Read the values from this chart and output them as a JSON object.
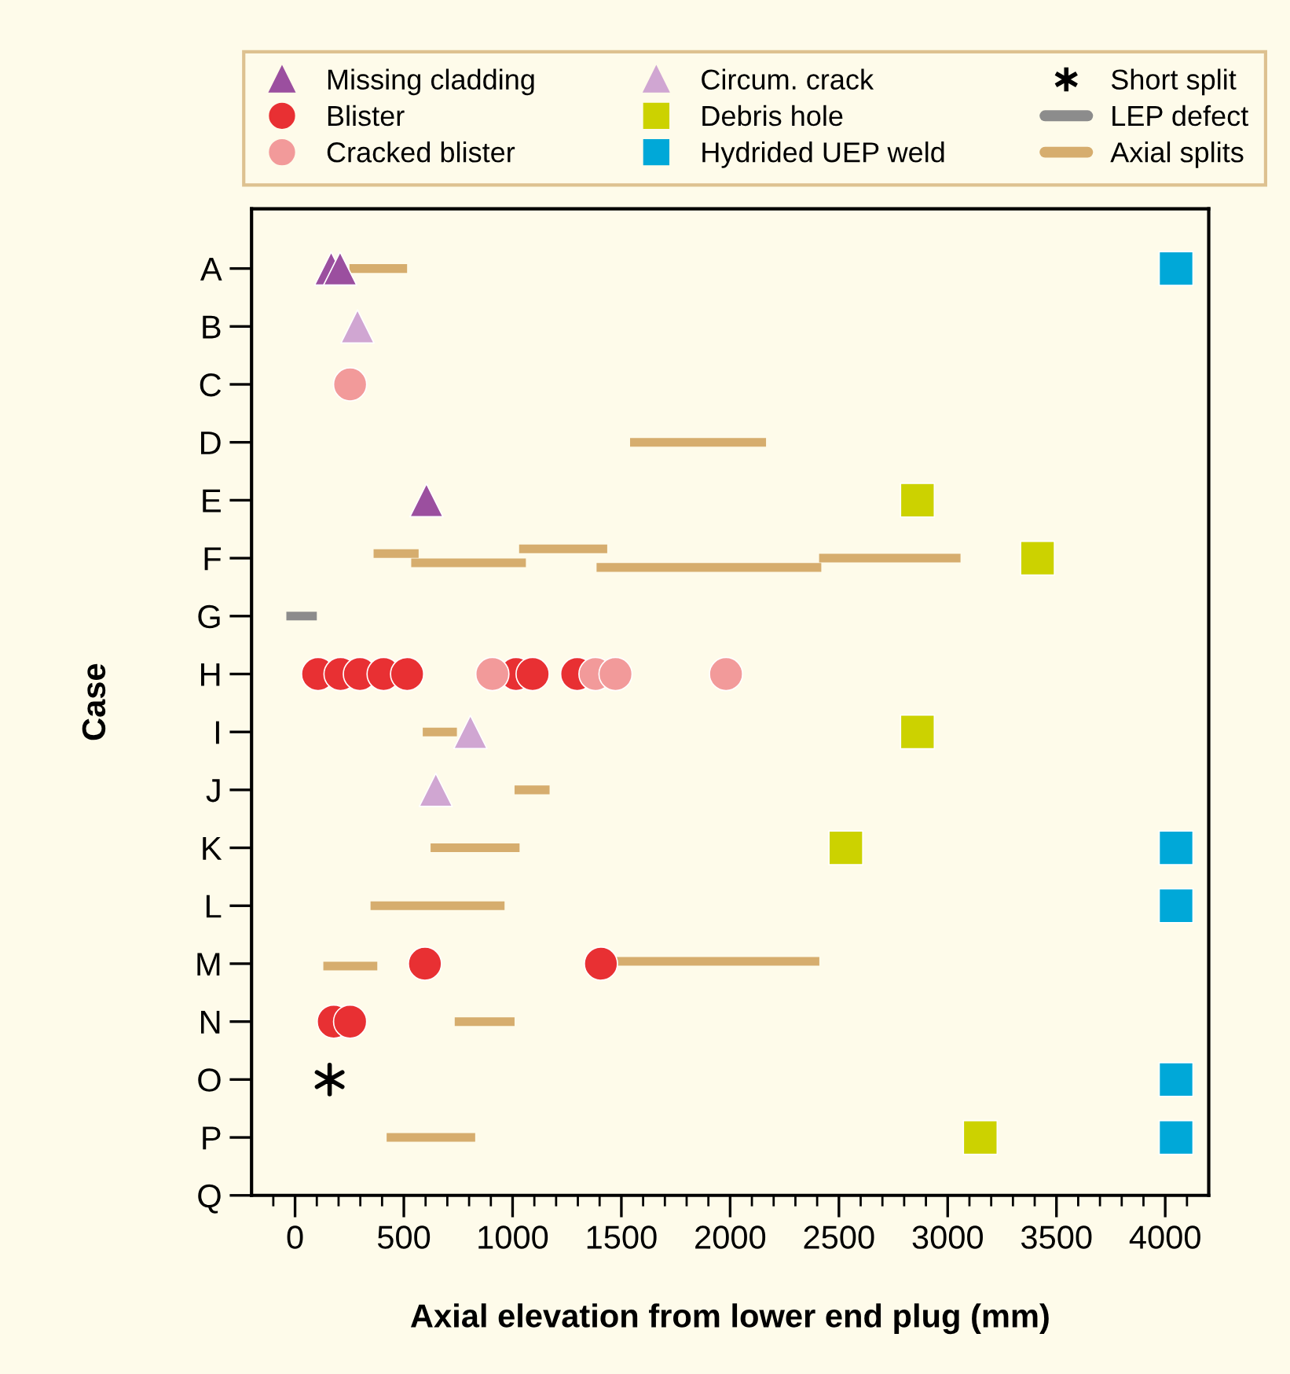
{
  "chart_data": {
    "type": "scatter",
    "xlabel": "Axial elevation from lower end plug (mm)",
    "ylabel": "Case",
    "categories": [
      "A",
      "B",
      "C",
      "D",
      "E",
      "F",
      "G",
      "H",
      "I",
      "J",
      "K",
      "L",
      "M",
      "N",
      "O",
      "P",
      "Q"
    ],
    "orientation": "horizontal",
    "xlim": [
      -200,
      4200
    ],
    "xticks": [
      {
        "value": -100,
        "label": null
      },
      0,
      {
        "value": 100,
        "label": null
      },
      {
        "value": 200,
        "label": null
      },
      {
        "value": 300,
        "label": null
      },
      {
        "value": 400,
        "label": null
      },
      500,
      {
        "value": 600,
        "label": null
      },
      {
        "value": 700,
        "label": null
      },
      {
        "value": 800,
        "label": null
      },
      {
        "value": 900,
        "label": null
      },
      1000,
      {
        "value": 1100,
        "label": null
      },
      {
        "value": 1200,
        "label": null
      },
      {
        "value": 1300,
        "label": null
      },
      {
        "value": 1400,
        "label": null
      },
      1500,
      {
        "value": 1600,
        "label": null
      },
      {
        "value": 1700,
        "label": null
      },
      {
        "value": 1800,
        "label": null
      },
      {
        "value": 1900,
        "label": null
      },
      2000,
      {
        "value": 2100,
        "label": null
      },
      {
        "value": 2200,
        "label": null
      },
      {
        "value": 2300,
        "label": null
      },
      {
        "value": 2400,
        "label": null
      },
      2500,
      {
        "value": 2600,
        "label": null
      },
      {
        "value": 2700,
        "label": null
      },
      {
        "value": 2800,
        "label": null
      },
      {
        "value": 2900,
        "label": null
      },
      3000,
      {
        "value": 3100,
        "label": null
      },
      {
        "value": 3200,
        "label": null
      },
      {
        "value": 3300,
        "label": null
      },
      {
        "value": 3400,
        "label": null
      },
      3500,
      {
        "value": 3600,
        "label": null
      },
      {
        "value": 3700,
        "label": null
      },
      {
        "value": 3800,
        "label": null
      },
      {
        "value": 3900,
        "label": null
      },
      4000,
      {
        "value": 4100,
        "label": null
      }
    ],
    "grid": false,
    "legend": "top",
    "series": [
      {
        "name": "Missing cladding",
        "marker": "triangle",
        "color": "#9b4f9f",
        "values": [
          166,
          null,
          null,
          null,
          604,
          null,
          null,
          null,
          null,
          null,
          null,
          null,
          null,
          null,
          null,
          null,
          null
        ]
      },
      {
        "marker": "triangle",
        "color": "#9b4f9f",
        "values": [
          207,
          null,
          null,
          null,
          null,
          null,
          null,
          null,
          null,
          null,
          null,
          null,
          null,
          null,
          null,
          null,
          null
        ]
      },
      {
        "name": "Blister",
        "marker": "circle",
        "color": "#e83033",
        "values": [
          null,
          null,
          null,
          null,
          null,
          null,
          null,
          106,
          null,
          null,
          null,
          null,
          597,
          178,
          null,
          null,
          null
        ]
      },
      {
        "marker": "circle",
        "color": "#e83033",
        "values": [
          null,
          null,
          null,
          null,
          null,
          null,
          null,
          209,
          null,
          null,
          null,
          null,
          1406,
          253,
          null,
          null,
          null
        ]
      },
      {
        "marker": "circle",
        "color": "#e83033",
        "values": [
          null,
          null,
          null,
          null,
          null,
          null,
          null,
          298,
          null,
          null,
          null,
          null,
          null,
          null,
          null,
          null,
          null
        ]
      },
      {
        "marker": "circle",
        "color": "#e83033",
        "values": [
          null,
          null,
          null,
          null,
          null,
          null,
          null,
          407,
          null,
          null,
          null,
          null,
          null,
          null,
          null,
          null,
          null
        ]
      },
      {
        "marker": "circle",
        "color": "#e83033",
        "values": [
          null,
          null,
          null,
          null,
          null,
          null,
          null,
          515,
          null,
          null,
          null,
          null,
          null,
          null,
          null,
          null,
          null
        ]
      },
      {
        "marker": "circle",
        "color": "#e83033",
        "values": [
          null,
          null,
          null,
          null,
          null,
          null,
          null,
          1016,
          null,
          null,
          null,
          null,
          null,
          null,
          null,
          null,
          null
        ]
      },
      {
        "marker": "circle",
        "color": "#e83033",
        "values": [
          null,
          null,
          null,
          null,
          null,
          null,
          null,
          1092,
          null,
          null,
          null,
          null,
          null,
          null,
          null,
          null,
          null
        ]
      },
      {
        "marker": "circle",
        "color": "#e83033",
        "values": [
          null,
          null,
          null,
          null,
          null,
          null,
          null,
          1297,
          null,
          null,
          null,
          null,
          null,
          null,
          null,
          null,
          null
        ]
      },
      {
        "name": "Cracked blister",
        "marker": "circle",
        "color": "#f29a9a",
        "values": [
          null,
          null,
          253,
          null,
          null,
          null,
          null,
          907,
          null,
          null,
          null,
          null,
          null,
          null,
          null,
          null,
          null
        ]
      },
      {
        "marker": "circle",
        "color": "#f29a9a",
        "values": [
          null,
          null,
          null,
          null,
          null,
          null,
          null,
          1381,
          null,
          null,
          null,
          null,
          null,
          null,
          null,
          null,
          null
        ]
      },
      {
        "marker": "circle",
        "color": "#f29a9a",
        "values": [
          null,
          null,
          null,
          null,
          null,
          null,
          null,
          1473,
          null,
          null,
          null,
          null,
          null,
          null,
          null,
          null,
          null
        ]
      },
      {
        "marker": "circle",
        "color": "#f29a9a",
        "values": [
          null,
          null,
          null,
          null,
          null,
          null,
          null,
          1981,
          null,
          null,
          null,
          null,
          null,
          null,
          null,
          null,
          null
        ]
      },
      {
        "name": "Circum. crack",
        "marker": "triangle",
        "color": "#d0a6d2",
        "values": [
          null,
          287,
          null,
          null,
          null,
          null,
          null,
          null,
          806,
          647,
          null,
          null,
          null,
          null,
          null,
          null,
          null
        ]
      },
      {
        "name": "Debris hole",
        "marker": "square",
        "color": "#ccd200",
        "values": [
          null,
          null,
          null,
          null,
          2861,
          3413,
          null,
          null,
          2861,
          null,
          2532,
          null,
          null,
          null,
          null,
          3150,
          null
        ]
      },
      {
        "name": "Hydrided UEP weld",
        "marker": "square",
        "color": "#00a8d8",
        "values": [
          4050,
          null,
          null,
          null,
          null,
          null,
          null,
          null,
          null,
          null,
          4050,
          4050,
          null,
          null,
          4050,
          4050,
          null
        ]
      },
      {
        "name": "Short split",
        "marker": "cross",
        "color": "#000000",
        "values": [
          null,
          null,
          null,
          null,
          null,
          null,
          null,
          null,
          null,
          null,
          null,
          null,
          null,
          null,
          159,
          null,
          null
        ]
      },
      {
        "name": "LEP defect",
        "type": "bar",
        "color": "#8c8c8c",
        "base": [
          null,
          null,
          null,
          null,
          null,
          null,
          -40,
          null,
          null,
          null,
          null,
          null,
          null,
          null,
          null,
          null,
          null
        ],
        "values": [
          null,
          null,
          null,
          null,
          null,
          null,
          140,
          null,
          null,
          null,
          null,
          null,
          null,
          null,
          null,
          null,
          null
        ]
      },
      {
        "type": "bar",
        "color": "#d6ad6e",
        "base": [
          null,
          null,
          null,
          null,
          null,
          1030,
          null,
          null,
          null,
          null,
          null,
          null,
          null,
          null,
          null,
          null,
          null
        ],
        "values": [
          null,
          null,
          null,
          null,
          null,
          405,
          null,
          null,
          null,
          null,
          null,
          null,
          null,
          null,
          null,
          null,
          null
        ]
      },
      {
        "type": "bar",
        "color": "#d6ad6e",
        "base": [
          null,
          null,
          null,
          null,
          null,
          361,
          null,
          null,
          null,
          null,
          null,
          null,
          1420,
          null,
          null,
          null,
          null
        ],
        "values": [
          null,
          null,
          null,
          null,
          null,
          207,
          null,
          null,
          null,
          null,
          null,
          null,
          990,
          null,
          null,
          null,
          null
        ]
      },
      {
        "name": "Axial splits",
        "type": "bar",
        "color": "#d6ad6e",
        "base": [
          250,
          null,
          null,
          1540,
          null,
          2409,
          null,
          null,
          587,
          1009,
          623,
          347,
          130,
          734,
          null,
          421,
          null
        ],
        "values": [
          265,
          null,
          null,
          625,
          null,
          650,
          null,
          null,
          157,
          161,
          409,
          616,
          248,
          275,
          null,
          407,
          null
        ]
      },
      {
        "type": "bar",
        "color": "#d6ad6e",
        "base": [
          null,
          null,
          null,
          null,
          null,
          534,
          null,
          null,
          null,
          null,
          null,
          null,
          null,
          null,
          null,
          null,
          null
        ],
        "values": [
          null,
          null,
          null,
          null,
          null,
          527,
          null,
          null,
          null,
          null,
          null,
          null,
          null,
          null,
          null,
          null,
          null
        ]
      },
      {
        "type": "bar",
        "color": "#d6ad6e",
        "base": [
          null,
          null,
          null,
          null,
          null,
          1386,
          null,
          null,
          null,
          null,
          null,
          null,
          null,
          null,
          null,
          null,
          null
        ],
        "values": [
          null,
          null,
          null,
          null,
          null,
          1033,
          null,
          null,
          null,
          null,
          null,
          null,
          null,
          null,
          null,
          null,
          null
        ]
      }
    ]
  }
}
